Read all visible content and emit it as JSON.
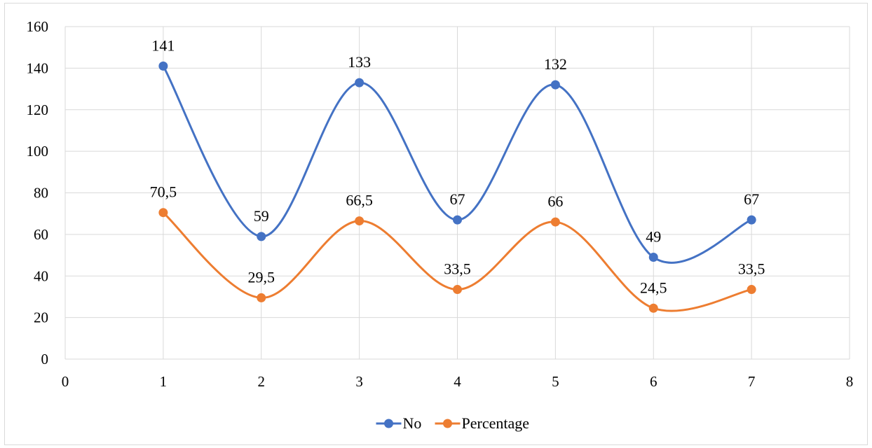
{
  "chart_data": {
    "type": "line",
    "smooth": true,
    "xlim": [
      0,
      8
    ],
    "ylim": [
      0,
      160
    ],
    "x_ticks": [
      0,
      1,
      2,
      3,
      4,
      5,
      6,
      7,
      8
    ],
    "y_ticks": [
      0,
      20,
      40,
      60,
      80,
      100,
      120,
      140,
      160
    ],
    "grid": true,
    "legend_position": "bottom",
    "x": [
      1,
      2,
      3,
      4,
      5,
      6,
      7
    ],
    "series": [
      {
        "name": "No",
        "color": "#4472c4",
        "values": [
          141,
          59,
          133,
          67,
          132,
          49,
          67
        ],
        "labels": [
          "141",
          "59",
          "133",
          "67",
          "132",
          "49",
          "67"
        ]
      },
      {
        "name": "Percentage",
        "color": "#ed7d31",
        "values": [
          70.5,
          29.5,
          66.5,
          33.5,
          66,
          24.5,
          33.5
        ],
        "labels": [
          "70,5",
          "29,5",
          "66,5",
          "33,5",
          "66",
          "24,5",
          "33,5"
        ]
      }
    ]
  }
}
